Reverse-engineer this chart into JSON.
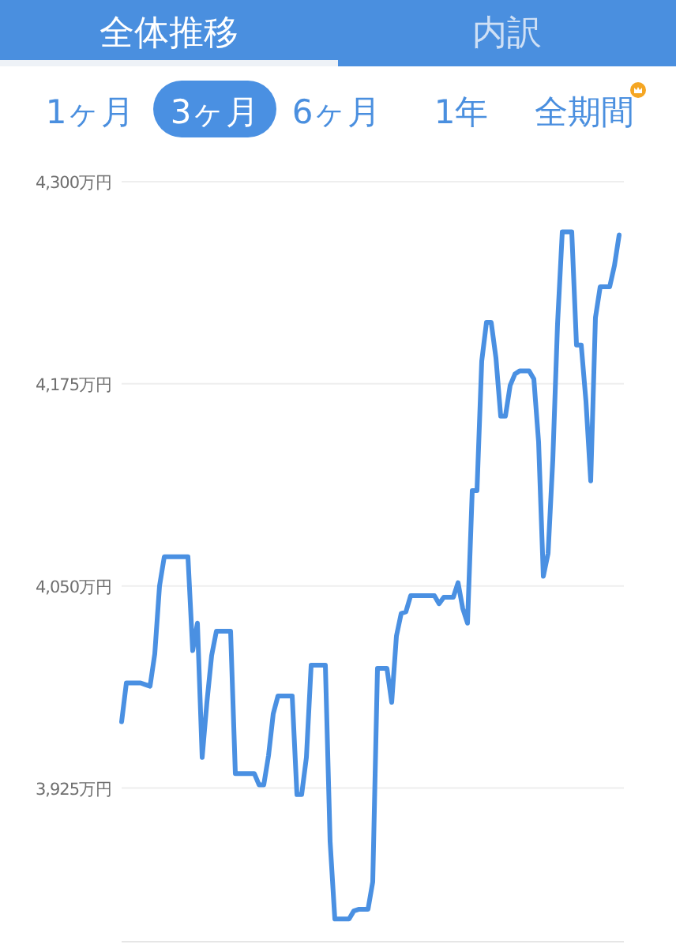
{
  "chart_data": {
    "type": "line",
    "annotations": [
      "全体推移",
      "内訳",
      "1ヶ月",
      "3ヶ月",
      "6ヶ月",
      "1年",
      "全期間"
    ],
    "categories": [
      null,
      null,
      null,
      null,
      null,
      null,
      null,
      null,
      null,
      null,
      null,
      null,
      null,
      null,
      null,
      null,
      null,
      null,
      null,
      null,
      null,
      null,
      null,
      null,
      null,
      null,
      null,
      null,
      null,
      null,
      null,
      null,
      null,
      null,
      null,
      null,
      null,
      null,
      null,
      null,
      null,
      null,
      null,
      null,
      null,
      null,
      null,
      null,
      null,
      null,
      null,
      null,
      null,
      null,
      null,
      null,
      null,
      null,
      null,
      null,
      null,
      null,
      null,
      null,
      null,
      null,
      null,
      null,
      null,
      null,
      null,
      null,
      null,
      null,
      null,
      null,
      null,
      null,
      null,
      null,
      null,
      null,
      null,
      null,
      null,
      null,
      null,
      null,
      null,
      null,
      null,
      null,
      null,
      null,
      null,
      null,
      null,
      null,
      null,
      null,
      null,
      null,
      null,
      null,
      null,
      null
    ],
    "series": [
      {
        "color": "#4a90e2",
        "values": [
          3966,
          3990,
          3990,
          3990,
          3990,
          3989,
          3988,
          4008,
          4050,
          4068,
          4068,
          4068,
          4068,
          4068,
          4068,
          4010,
          4027,
          3944,
          3978,
          4007,
          4022,
          4022,
          4022,
          4022,
          3934,
          3934,
          3934,
          3934,
          3934,
          3927,
          3927,
          3945,
          3971,
          3982,
          3982,
          3982,
          3982,
          3921,
          3921,
          3944,
          4001,
          4001,
          4001,
          4001,
          3892,
          3844,
          3844,
          3844,
          3844,
          3849,
          3850,
          3850,
          3850,
          3867,
          3999,
          3999,
          3999,
          3978,
          4019,
          4033,
          4034,
          4044,
          4044,
          4044,
          4044,
          4044,
          4044,
          4039,
          4043,
          4043,
          4043,
          4052,
          4036,
          4027,
          4109,
          4109,
          4189,
          4213,
          4213,
          4191,
          4155,
          4155,
          4174,
          4181,
          4183,
          4183,
          4183,
          4178,
          4139,
          4056,
          4070,
          4128,
          4212,
          4269,
          4269,
          4269,
          4199,
          4199,
          4164,
          4115,
          4216,
          4235,
          4235,
          4235,
          4248,
          4267
        ]
      }
    ],
    "ylim": [
      3830,
      4300
    ],
    "yticks": [
      {
        "value": 3925,
        "label": "3,925万円"
      },
      {
        "value": 4050,
        "label": "4,050万円"
      },
      {
        "value": 4175,
        "label": "4,175万円"
      },
      {
        "value": 4300,
        "label": "4,300万円"
      }
    ],
    "grid": "y",
    "tick_labels": "y"
  }
}
